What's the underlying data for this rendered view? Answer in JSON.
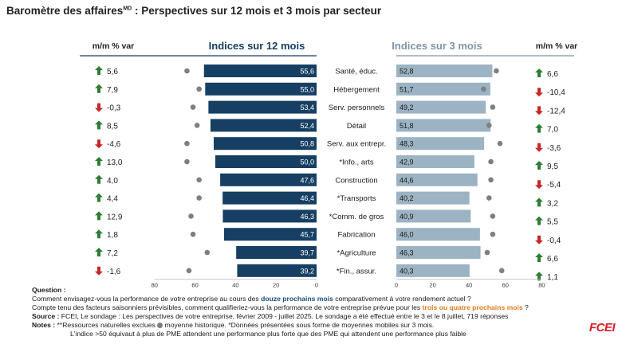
{
  "title": {
    "main": "Baromètre des affaires",
    "sup": "MD",
    "rest": " : Perspectives sur 12 mois et 3 mois par secteur"
  },
  "colors": {
    "bar12": "#163f63",
    "bar3": "#9bb3c3",
    "dot": "#7f7f7f",
    "up": "#2e7d32",
    "down": "#c62828",
    "head12": "#163f63",
    "head3": "#7f96a8"
  },
  "chart_data": [
    {
      "type": "bar",
      "title": "Indices sur 12 mois",
      "orientation": "horizontal",
      "xlim": [
        80,
        0
      ],
      "ticks": [
        "80",
        "60",
        "40",
        "20",
        "0"
      ],
      "categories": [
        "Santé, éduc.",
        "Hébergement",
        "Serv. personnels",
        "Détail",
        "Serv. aux entrepr.",
        "*Info., arts",
        "Construction",
        "*Transports",
        "*Comm. de gros",
        "Fabrication",
        "*Agriculture",
        "*Fin., assur."
      ],
      "values": [
        55.6,
        55.0,
        53.4,
        52.4,
        50.8,
        50.0,
        47.6,
        46.4,
        46.3,
        45.7,
        39.7,
        39.2
      ],
      "value_labels": [
        "55,6",
        "55,0",
        "53,4",
        "52,4",
        "50,8",
        "50,0",
        "47,6",
        "46,4",
        "46,3",
        "45,7",
        "39,7",
        "39,2"
      ],
      "historical_average": [
        64,
        58,
        61,
        59,
        64,
        64,
        58,
        58,
        62,
        61,
        54,
        63
      ],
      "mm_header": "m/m % var",
      "mm_change": [
        "5,6",
        "7,9",
        "-0,3",
        "8,5",
        "-4,6",
        "13,0",
        "4,0",
        "4,4",
        "12,9",
        "1,8",
        "7,2",
        "-1,6"
      ],
      "mm_direction": [
        "up",
        "up",
        "down",
        "up",
        "down",
        "up",
        "up",
        "up",
        "up",
        "up",
        "up",
        "down"
      ]
    },
    {
      "type": "bar",
      "title": "Indices sur 3 mois",
      "orientation": "horizontal",
      "xlim": [
        0,
        80
      ],
      "ticks": [
        "0",
        "20",
        "40",
        "60",
        "80"
      ],
      "categories": [
        "Santé, éduc.",
        "Hébergement",
        "Serv. personnels",
        "Détail",
        "Serv. aux entrepr.",
        "*Info., arts",
        "Construction",
        "*Transports",
        "*Comm. de gros",
        "Fabrication",
        "*Agriculture",
        "*Fin., assur."
      ],
      "values": [
        52.8,
        51.7,
        49.2,
        51.8,
        48.3,
        42.9,
        44.6,
        40.2,
        40.9,
        46.0,
        46.3,
        40.3
      ],
      "value_labels": [
        "52,8",
        "51,7",
        "49,2",
        "51,8",
        "48,3",
        "42,9",
        "44,6",
        "40,2",
        "40,9",
        "46,0",
        "46,3",
        "40,3"
      ],
      "historical_average": [
        55,
        48,
        53,
        51,
        57,
        52,
        52,
        51,
        53,
        53,
        50,
        58
      ],
      "mm_header": "m/m % var",
      "mm_change": [
        "6,6",
        "-10,4",
        "-12,4",
        "7,0",
        "-3,6",
        "9,5",
        "-5,4",
        "3,2",
        "5,5",
        "-0,4",
        "6,6",
        "1,1"
      ],
      "mm_direction": [
        "up",
        "down",
        "down",
        "up",
        "down",
        "up",
        "down",
        "up",
        "up",
        "down",
        "up",
        "up"
      ]
    }
  ],
  "footer": {
    "question_label": "Question :",
    "q1_a": "Comment envisagez-vous la performance de votre entreprise au cours des ",
    "q1_hl": "douze prochains mois",
    "q1_b": " comparativement à votre rendement actuel ?",
    "q2_a": "Compte tenu des facteurs saisonniers prévisibles, comment qualifieriez-vous la performance  de votre entreprise prévue pour les ",
    "q2_hl": "trois ou quatre prochains mois",
    "q2_b": " ?",
    "source_label": "Source :",
    "source_text": " FCEI, Le sondage : Les perspectives de votre entreprise, février 2009 - juillet 2025. Le sondage a été effectué entre le 3 et le 8 juillet, 719 réponses",
    "notes_label": "Notes :",
    "notes_a": " **Ressources naturelles exclues ",
    "notes_b": " moyenne historique. *Données présentées sous forme de moyennes mobiles sur 3 mois.",
    "line_last": "L'indice >50 équivaut à plus de PME attendent une performance plus forte que des PME qui attendent une performance plus faible",
    "logo": "FCEI"
  }
}
